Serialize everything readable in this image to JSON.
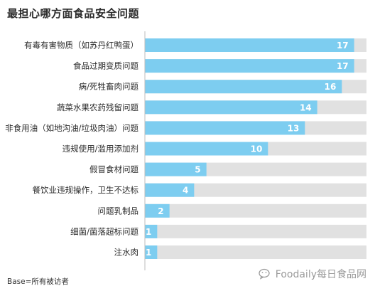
{
  "title": "最担心哪方面食品安全问题",
  "base_note": "Base=所有被访者",
  "watermark_text": "Foodaily每日食品网",
  "colors": {
    "bar": "#7dcdf0",
    "track": "#e1e1e1",
    "label": "#2b2b2b",
    "value": "#ffffff",
    "axis": "#bdbdbd",
    "watermark": "#9a9a9a"
  },
  "chart_data": {
    "type": "bar",
    "orientation": "horizontal",
    "title": "最担心哪方面食品安全问题",
    "xlim": [
      0,
      18
    ],
    "categories": [
      "有毒有害物质（如苏丹红鸭蛋）",
      "食品过期变质问题",
      "病/死牲畜肉问题",
      "蔬菜水果农药残留问题",
      "非食用油（如地沟油/垃圾肉油）问题",
      "违规使用/滥用添加剂",
      "假冒食材问题",
      "餐饮业违规操作，卫生不达标",
      "问题乳制品",
      "细菌/菌落超标问题",
      "注水肉"
    ],
    "values": [
      17,
      17,
      16,
      14,
      13,
      10,
      5,
      4,
      2,
      1,
      1
    ],
    "value_labels": [
      "17",
      "17",
      "16",
      "14",
      "13",
      "10",
      "5",
      "4",
      "2",
      "1",
      "1"
    ],
    "footnote": "Base=所有被访者"
  }
}
